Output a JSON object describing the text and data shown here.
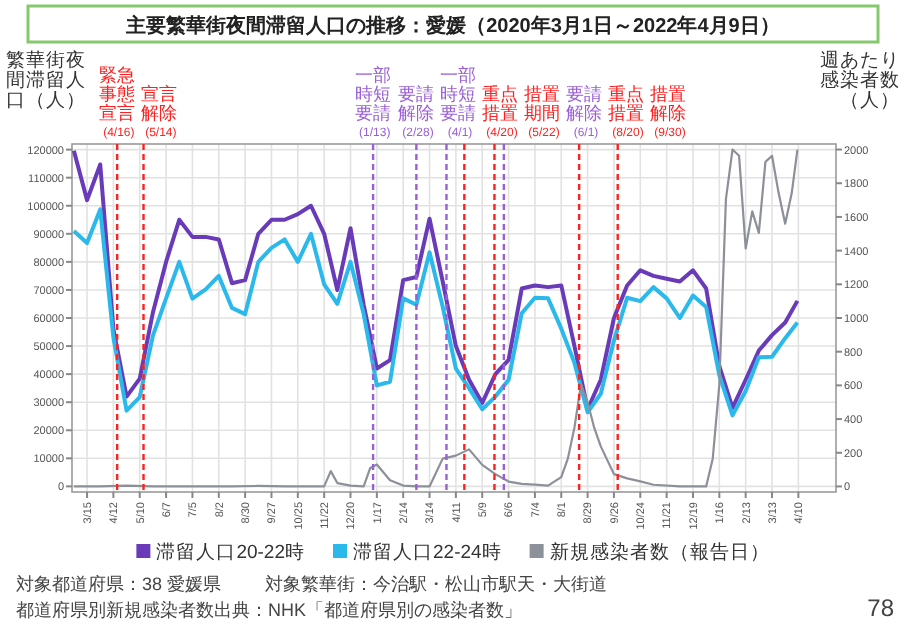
{
  "chart_data": {
    "type": "line",
    "title": "主要繁華街夜間滞留人口の推移：愛媛（2020年3月1日～2022年4月9日）",
    "ylabel": "繁華街夜間滞留人口（人）",
    "y2label": "週あたり感染者数（人）",
    "x": [
      "2020-03-01",
      "2020-03-15",
      "2020-03-29",
      "2020-04-12",
      "2020-04-26",
      "2020-05-10",
      "2020-05-24",
      "2020-06-07",
      "2020-06-21",
      "2020-07-05",
      "2020-07-19",
      "2020-08-02",
      "2020-08-16",
      "2020-08-30",
      "2020-09-13",
      "2020-09-27",
      "2020-10-11",
      "2020-10-25",
      "2020-11-08",
      "2020-11-22",
      "2020-12-06",
      "2020-12-20",
      "2021-01-03",
      "2021-01-17",
      "2021-01-31",
      "2021-02-14",
      "2021-02-28",
      "2021-03-14",
      "2021-03-28",
      "2021-04-11",
      "2021-04-25",
      "2021-05-09",
      "2021-05-23",
      "2021-06-06",
      "2021-06-20",
      "2021-07-04",
      "2021-07-18",
      "2021-08-01",
      "2021-08-15",
      "2021-08-29",
      "2021-09-12",
      "2021-09-26",
      "2021-10-10",
      "2021-10-24",
      "2021-11-07",
      "2021-11-21",
      "2021-12-05",
      "2021-12-19",
      "2022-01-02",
      "2022-01-16",
      "2022-01-30",
      "2022-02-13",
      "2022-02-27",
      "2022-03-13",
      "2022-03-27",
      "2022-04-09"
    ],
    "series": [
      {
        "name": "滞留人口20-22時",
        "color": "#6a3bb8",
        "values": [
          119600,
          102000,
          114700,
          56000,
          32000,
          38400,
          62000,
          80000,
          95000,
          88900,
          88900,
          88000,
          72400,
          73500,
          90000,
          95000,
          95000,
          97000,
          100000,
          90000,
          70000,
          92000,
          64700,
          42000,
          45000,
          73500,
          74600,
          95400,
          73000,
          50000,
          38000,
          29700,
          40000,
          45100,
          70500,
          71600,
          71000,
          71600,
          50000,
          27500,
          38000,
          60000,
          71600,
          77000,
          75000,
          74000,
          73000,
          77000,
          70500,
          42900,
          28000,
          38000,
          48400,
          53900,
          58400,
          66100
        ]
      },
      {
        "name": "滞留人口22-24時",
        "color": "#2bb8ea",
        "values": [
          91000,
          86700,
          98700,
          53000,
          27000,
          31800,
          53700,
          67000,
          80000,
          66900,
          70200,
          75000,
          63600,
          61400,
          80000,
          85000,
          88000,
          80000,
          90000,
          72000,
          65000,
          80000,
          61400,
          36000,
          37300,
          67000,
          64700,
          83400,
          64000,
          42000,
          35000,
          27500,
          32000,
          38000,
          61700,
          67200,
          67000,
          56200,
          44000,
          26400,
          33000,
          52000,
          67200,
          66000,
          71000,
          67000,
          60000,
          68000,
          63900,
          39600,
          25300,
          34000,
          46000,
          46200,
          52800,
          58400
        ]
      },
      {
        "name": "新規感染者数（報告日）",
        "color": "#8c9099",
        "axis": "y2",
        "x": [
          "2020-03-01",
          "2020-03-29",
          "2020-04-26",
          "2020-05-24",
          "2020-06-21",
          "2020-07-19",
          "2020-08-16",
          "2020-09-13",
          "2020-10-11",
          "2020-11-08",
          "2020-11-22",
          "2020-11-29",
          "2020-12-06",
          "2020-12-20",
          "2021-01-03",
          "2021-01-10",
          "2021-01-17",
          "2021-01-31",
          "2021-02-14",
          "2021-02-28",
          "2021-03-14",
          "2021-03-28",
          "2021-04-11",
          "2021-04-25",
          "2021-05-09",
          "2021-05-23",
          "2021-06-06",
          "2021-06-20",
          "2021-07-04",
          "2021-07-18",
          "2021-08-01",
          "2021-08-08",
          "2021-08-15",
          "2021-08-22",
          "2021-08-29",
          "2021-09-05",
          "2021-09-12",
          "2021-09-26",
          "2021-10-10",
          "2021-10-24",
          "2021-11-07",
          "2021-12-05",
          "2022-01-02",
          "2022-01-09",
          "2022-01-16",
          "2022-01-23",
          "2022-01-30",
          "2022-02-06",
          "2022-02-13",
          "2022-02-20",
          "2022-02-27",
          "2022-03-06",
          "2022-03-13",
          "2022-03-20",
          "2022-03-27",
          "2022-04-03",
          "2022-04-09"
        ],
        "values": [
          0,
          0,
          5,
          0,
          0,
          0,
          0,
          3,
          0,
          0,
          0,
          91,
          20,
          5,
          0,
          110,
          130,
          37,
          5,
          0,
          0,
          165,
          183,
          220,
          128,
          73,
          29,
          15,
          11,
          5,
          55,
          165,
          350,
          605,
          500,
          349,
          238,
          73,
          48,
          30,
          10,
          0,
          0,
          165,
          605,
          1706,
          2000,
          1963,
          1413,
          1633,
          1505,
          1927,
          1963,
          1743,
          1560,
          1743,
          2000
        ]
      }
    ],
    "xlim": [
      "2020-02-28",
      "2022-05-20"
    ],
    "xticks": [
      {
        "value": "2020-03-15",
        "label": "3/15"
      },
      {
        "value": "2020-04-12",
        "label": "4/12"
      },
      {
        "value": "2020-05-10",
        "label": "5/10"
      },
      {
        "value": "2020-06-07",
        "label": "6/7"
      },
      {
        "value": "2020-07-05",
        "label": "7/5"
      },
      {
        "value": "2020-08-02",
        "label": "8/2"
      },
      {
        "value": "2020-08-30",
        "label": "8/30"
      },
      {
        "value": "2020-09-27",
        "label": "9/27"
      },
      {
        "value": "2020-10-25",
        "label": "10/25"
      },
      {
        "value": "2020-11-22",
        "label": "11/22"
      },
      {
        "value": "2020-12-20",
        "label": "12/20"
      },
      {
        "value": "2021-01-17",
        "label": "1/17"
      },
      {
        "value": "2021-02-14",
        "label": "2/14"
      },
      {
        "value": "2021-03-14",
        "label": "3/14"
      },
      {
        "value": "2021-04-11",
        "label": "4/11"
      },
      {
        "value": "2021-05-09",
        "label": "5/9"
      },
      {
        "value": "2021-06-06",
        "label": "6/6"
      },
      {
        "value": "2021-07-04",
        "label": "7/4"
      },
      {
        "value": "2021-08-01",
        "label": "8/1"
      },
      {
        "value": "2021-08-29",
        "label": "8/29"
      },
      {
        "value": "2021-09-26",
        "label": "9/26"
      },
      {
        "value": "2021-10-24",
        "label": "10/24"
      },
      {
        "value": "2021-11-21",
        "label": "11/21"
      },
      {
        "value": "2021-12-19",
        "label": "12/19"
      },
      {
        "value": "2022-01-16",
        "label": "1/16"
      },
      {
        "value": "2022-02-13",
        "label": "2/13"
      },
      {
        "value": "2022-03-13",
        "label": "3/13"
      },
      {
        "value": "2022-04-10",
        "label": "4/10"
      }
    ],
    "ylim": [
      -2000,
      122000
    ],
    "yticks": [
      0,
      10000,
      20000,
      30000,
      40000,
      50000,
      60000,
      70000,
      80000,
      90000,
      100000,
      110000,
      120000
    ],
    "y2lim": [
      -33,
      2033
    ],
    "y2ticks": [
      0,
      200,
      400,
      600,
      800,
      1000,
      1200,
      1400,
      1600,
      1800,
      2000
    ],
    "grid": true,
    "legend": "bottom",
    "marker": "none",
    "ref_lines": [
      {
        "axis": "x",
        "value": "2020-04-16",
        "label": "緊急事態宣言 (4/16)",
        "color": "#ff2020",
        "line_style": "dashed"
      },
      {
        "axis": "x",
        "value": "2020-05-14",
        "label": "宣言解除 (5/14)",
        "color": "#ff2020",
        "line_style": "dashed"
      },
      {
        "axis": "x",
        "value": "2021-01-13",
        "label": "一部時短要請 (1/13)",
        "color": "#9a5fd6",
        "line_style": "dashed"
      },
      {
        "axis": "x",
        "value": "2021-02-28",
        "label": "要請解除 (2/28)",
        "color": "#9a5fd6",
        "line_style": "dashed"
      },
      {
        "axis": "x",
        "value": "2021-04-01",
        "label": "一部時短要請 (4/1)",
        "color": "#9a5fd6",
        "line_style": "dashed"
      },
      {
        "axis": "x",
        "value": "2021-04-20",
        "label": "重点措置 (4/20)",
        "color": "#ff2020",
        "line_style": "dashed"
      },
      {
        "axis": "x",
        "value": "2021-05-22",
        "label": "措置期間 (5/22)",
        "color": "#ff2020",
        "line_style": "dashed"
      },
      {
        "axis": "x",
        "value": "2021-06-01",
        "label": "要請解除 (6/1)",
        "color": "#9a5fd6",
        "line_style": "dashed"
      },
      {
        "axis": "x",
        "value": "2021-08-20",
        "label": "重点措置 (8/20)",
        "color": "#ff2020",
        "line_style": "dashed"
      },
      {
        "axis": "x",
        "value": "2021-09-30",
        "label": "措置解除 (9/30)",
        "color": "#ff2020",
        "line_style": "dashed"
      }
    ],
    "annotations": [
      "対象都道府県：38 愛媛県",
      "対象繁華街：今治駅・松山市駅天・大街道",
      "都道府県別新規感染者数出典：NHK「都道府県別の感染者数」",
      "78"
    ]
  }
}
